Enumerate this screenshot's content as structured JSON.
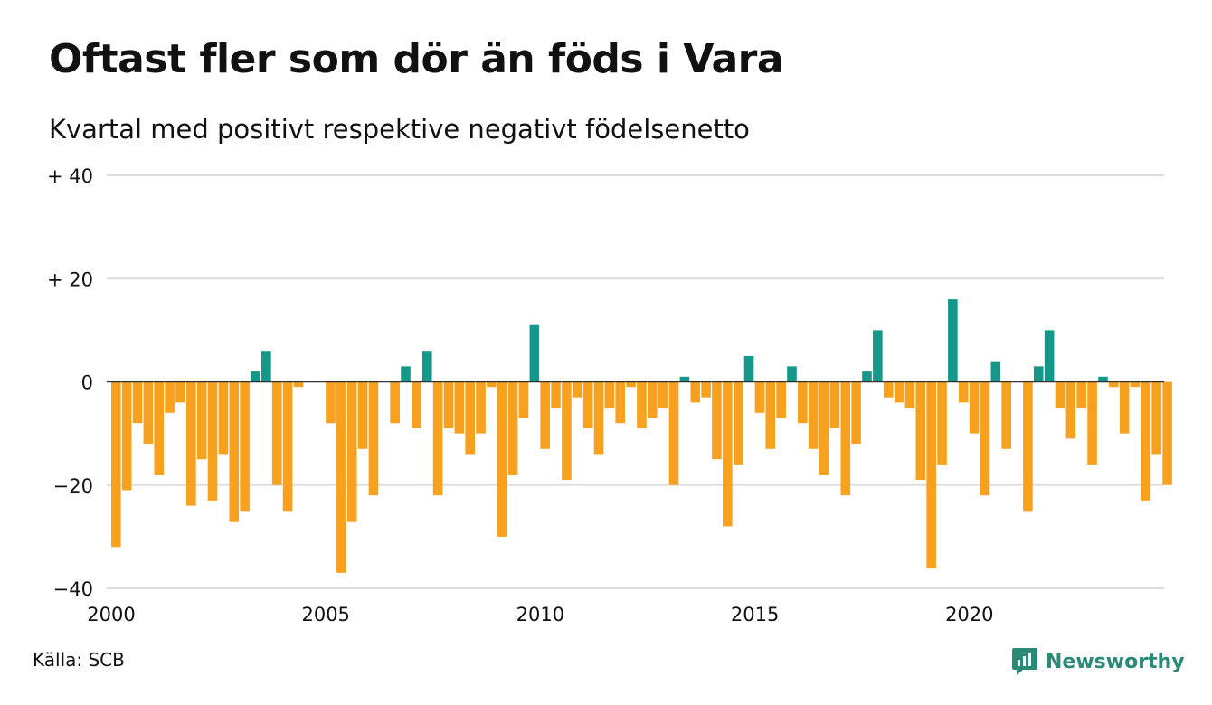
{
  "header": {
    "title": "Oftast fler som dör än föds i Vara",
    "subtitle": "Kvartal med positivt respektive negativt födelsenetto"
  },
  "footer": {
    "source": "Källa: SCB",
    "brand": "Newsworthy"
  },
  "colors": {
    "positive": "#14988a",
    "negative": "#f7a11e",
    "grid": "#dddddd",
    "zero_line": "#333333",
    "brand": "#2b8a77"
  },
  "chart_data": {
    "type": "bar",
    "title": "Oftast fler som dör än föds i Vara",
    "subtitle": "Kvartal med positivt respektive negativt födelsenetto",
    "xlabel": "",
    "ylabel": "",
    "ylim": [
      -40,
      40
    ],
    "yticks": [
      {
        "value": 40,
        "label": "+ 40"
      },
      {
        "value": 20,
        "label": "+ 20"
      },
      {
        "value": 0,
        "label": "0"
      },
      {
        "value": -20,
        "label": "−20"
      },
      {
        "value": -40,
        "label": "−40"
      }
    ],
    "xticks": [
      "2000",
      "2005",
      "2010",
      "2015",
      "2020"
    ],
    "grid": true,
    "start": {
      "year": 2000,
      "quarter": 1
    },
    "values": [
      -32,
      -21,
      -8,
      -12,
      -18,
      -6,
      -4,
      -24,
      -15,
      -23,
      -14,
      -27,
      -25,
      2,
      6,
      -20,
      -25,
      -1,
      0,
      0,
      -8,
      -37,
      -27,
      -13,
      -22,
      0,
      -8,
      3,
      -9,
      6,
      -22,
      -9,
      -10,
      -14,
      -10,
      -1,
      -30,
      -18,
      -7,
      11,
      -13,
      -5,
      -19,
      -3,
      -9,
      -14,
      -5,
      -8,
      -1,
      -9,
      -7,
      -5,
      -20,
      1,
      -4,
      -3,
      -15,
      -28,
      -16,
      5,
      -6,
      -13,
      -7,
      3,
      -8,
      -13,
      -18,
      -9,
      -22,
      -12,
      2,
      10,
      -3,
      -4,
      -5,
      -19,
      -36,
      -16,
      16,
      -4,
      -10,
      -22,
      4,
      -13,
      0,
      -25,
      3,
      10,
      -5,
      -11,
      -5,
      -16,
      1,
      -1,
      -10,
      -1,
      -23,
      -14,
      -20
    ]
  }
}
